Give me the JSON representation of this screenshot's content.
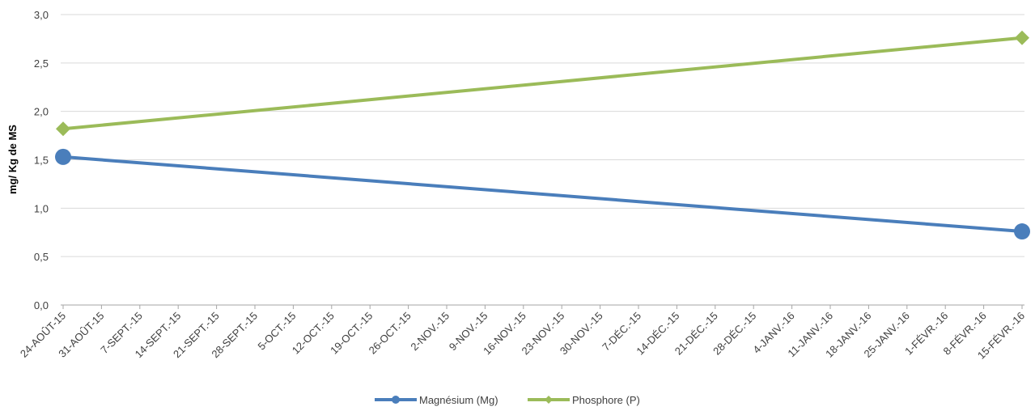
{
  "chart_data": {
    "type": "line",
    "title": "",
    "xlabel": "",
    "ylabel": "mg/ Kg de MS",
    "ylim": [
      0,
      3.0
    ],
    "yticks": [
      "0,0",
      "0,5",
      "1,0",
      "1,5",
      "2,0",
      "2,5",
      "3,0"
    ],
    "ytick_values": [
      0,
      0.5,
      1.0,
      1.5,
      2.0,
      2.5,
      3.0
    ],
    "categories": [
      "24-AOÛT-15",
      "31-AOÛT-15",
      "7-SEPT.-15",
      "14-SEPT.-15",
      "21-SEPT.-15",
      "28-SEPT.-15",
      "5-OCT.-15",
      "12-OCT.-15",
      "19-OCT.-15",
      "26-OCT.-15",
      "2-NOV.-15",
      "9-NOV.-15",
      "16-NOV.-15",
      "23-NOV.-15",
      "30-NOV.-15",
      "7-DÉC.-15",
      "14-DÉC.-15",
      "21-DÉC.-15",
      "28-DÉC.-15",
      "4-JANV.-16",
      "11-JANV.-16",
      "18-JANV.-16",
      "25-JANV.-16",
      "1-FÉVR.-16",
      "8-FÉVR.-16",
      "15-FÉVR.-16"
    ],
    "grid": true,
    "legend_position": "bottom",
    "series": [
      {
        "name": "Magnésium (Mg)",
        "color": "#4a7ebb",
        "marker": "circle",
        "x": [
          "24-AOÛT-15",
          "15-FÉVR.-16"
        ],
        "values": [
          1.53,
          0.76
        ]
      },
      {
        "name": "Phosphore (P)",
        "color": "#9bbb59",
        "marker": "diamond",
        "x": [
          "24-AOÛT-15",
          "15-FÉVR.-16"
        ],
        "values": [
          1.82,
          2.76
        ]
      }
    ]
  }
}
